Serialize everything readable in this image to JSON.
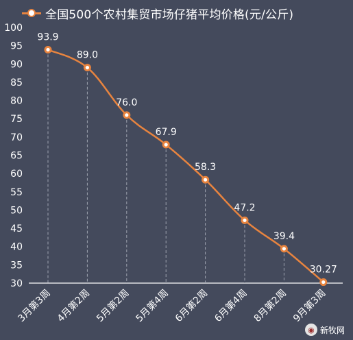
{
  "chart_data": {
    "type": "line",
    "title": "",
    "xlabel": "",
    "ylabel": "",
    "ylim": [
      30,
      100
    ],
    "yticks": [
      30,
      35,
      40,
      45,
      50,
      55,
      60,
      65,
      70,
      75,
      80,
      85,
      90,
      95,
      100
    ],
    "categories": [
      "3月第3周",
      "4月第2周",
      "5月第2周",
      "5月第4周",
      "6月第2周",
      "6月第4周",
      "8月第2周",
      "9月第3周"
    ],
    "series": [
      {
        "name": "全国500个农村集贸市场仔猪平均价格(元/公斤)",
        "values": [
          93.9,
          89.0,
          76.0,
          67.9,
          58.3,
          47.2,
          39.4,
          30.27
        ],
        "labels": [
          "93.9",
          "89.0",
          "76.0",
          "67.9",
          "58.3",
          "47.2",
          "39.4",
          "30.27"
        ],
        "color": "#e8843f"
      }
    ],
    "legend_position": "top-left",
    "grid": false,
    "drop_lines": true
  },
  "watermark": {
    "text": "新牧网",
    "icon": "logo-icon"
  },
  "colors": {
    "background": "#444a5c",
    "line": "#e8843f",
    "text": "#ffffff",
    "dropline": "#9ea3b0"
  }
}
